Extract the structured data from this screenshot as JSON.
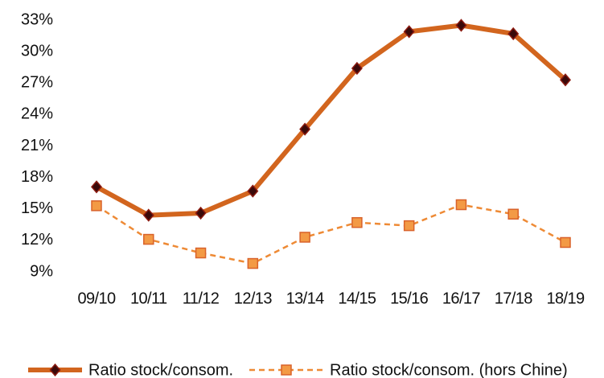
{
  "chart_data": {
    "type": "line",
    "categories": [
      "09/10",
      "10/11",
      "11/12",
      "12/13",
      "13/14",
      "14/15",
      "15/16",
      "16/17",
      "17/18",
      "18/19"
    ],
    "series": [
      {
        "name": "Ratio stock/consom.",
        "color": "#d2651e",
        "marker_color": "#3a0a0a",
        "marker": "diamond",
        "dash": false,
        "values": [
          17.1,
          14.4,
          14.6,
          16.7,
          22.6,
          28.4,
          31.9,
          32.5,
          31.7,
          27.3
        ]
      },
      {
        "name": "Ratio stock/consom. (hors Chine)",
        "color": "#ee8a35",
        "marker_color": "#f39a45",
        "marker": "square",
        "dash": true,
        "values": [
          15.3,
          12.1,
          10.8,
          9.8,
          12.3,
          13.7,
          13.4,
          15.4,
          14.5,
          11.8
        ]
      }
    ],
    "ylim": [
      9,
      33
    ],
    "yticks": [
      {
        "value": 9,
        "label": "9%"
      },
      {
        "value": 12,
        "label": "12%"
      },
      {
        "value": 15,
        "label": "15%"
      },
      {
        "value": 18,
        "label": "18%"
      },
      {
        "value": 21,
        "label": "21%"
      },
      {
        "value": 24,
        "label": "24%"
      },
      {
        "value": 27,
        "label": "27%"
      },
      {
        "value": 30,
        "label": "30%"
      },
      {
        "value": 33,
        "label": "33%"
      }
    ],
    "grid": false,
    "legend": "bottom"
  }
}
